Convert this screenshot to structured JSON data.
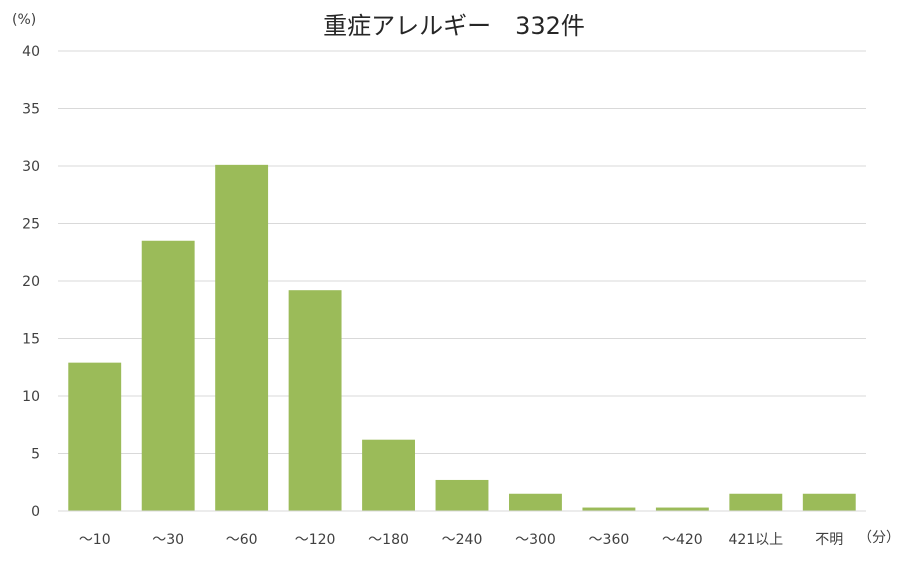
{
  "chart_data": {
    "type": "bar",
    "title": "重症アレルギー　332件",
    "ylabel": "(%)",
    "xlabel": "（分）",
    "categories": [
      "～10",
      "～30",
      "～60",
      "～120",
      "～180",
      "～240",
      "～300",
      "～360",
      "～420",
      "421以上",
      "不明"
    ],
    "values": [
      12.9,
      23.5,
      30.1,
      19.2,
      6.2,
      2.7,
      1.5,
      0.3,
      0.3,
      1.5,
      1.5
    ],
    "ylim": [
      0,
      40
    ],
    "yticks": [
      0,
      5,
      10,
      15,
      20,
      25,
      30,
      35,
      40
    ],
    "grid": true,
    "legend": "none",
    "colors": {
      "bar": "#9bbb59",
      "grid": "#d9d9d9",
      "text": "#404040"
    }
  }
}
